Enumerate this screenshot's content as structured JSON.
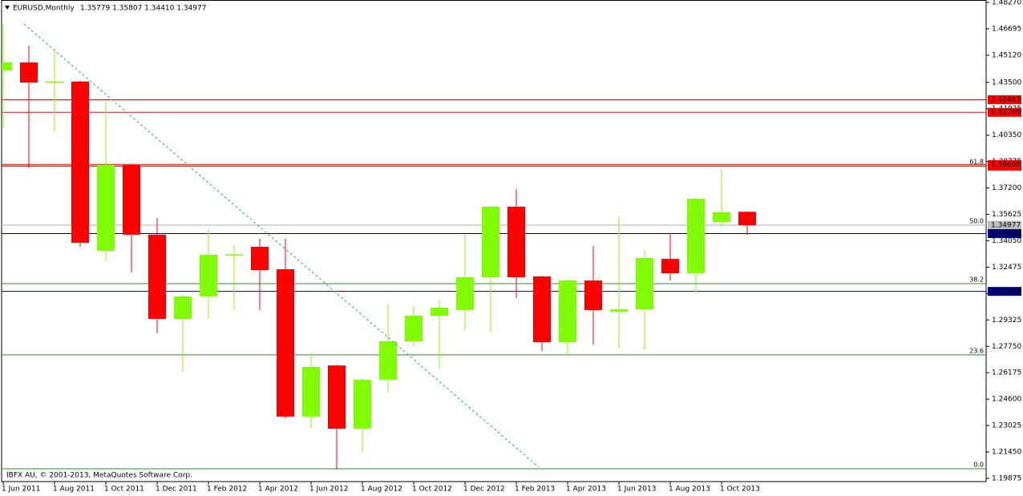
{
  "chart_data": {
    "type": "candlestick",
    "title": "EURUSD,Monthly",
    "header_values": "1.35779 1.35807 1.34410 1.34977",
    "footer": "IBFX AU, © 2001-2013, MetaQuotes Software Corp.",
    "categories": [
      "1 Jun 2011",
      null,
      "1 Aug 2011",
      null,
      "1 Oct 2011",
      null,
      "1 Dec 2011",
      null,
      "1 Feb 2012",
      null,
      "1 Apr 2012",
      null,
      "1 Jun 2012",
      null,
      "1 Aug 2012",
      null,
      "1 Oct 2012",
      null,
      "1 Dec 2012",
      null,
      "1 Feb 2013",
      null,
      "1 Apr 2013",
      null,
      "1 Jun 2013",
      null,
      "1 Aug 2013",
      null,
      "1 Oct 2013",
      null
    ],
    "open": [
      1.4421,
      1.4469,
      1.435,
      1.4355,
      1.3345,
      1.3857,
      1.3441,
      1.2939,
      1.3073,
      1.3318,
      1.3369,
      1.3235,
      1.2356,
      1.2661,
      1.2284,
      1.2576,
      1.2805,
      1.2958,
      1.2992,
      1.3187,
      1.3608,
      1.3192,
      1.28,
      1.3168,
      1.2982,
      1.2996,
      1.3297,
      1.3211,
      1.3517,
      1.35779
    ],
    "high": [
      1.4698,
      1.4569,
      1.4545,
      1.4359,
      1.4244,
      1.386,
      1.3541,
      1.3082,
      1.3479,
      1.3383,
      1.3417,
      1.3417,
      1.2738,
      1.2665,
      1.2585,
      1.3025,
      1.3015,
      1.3054,
      1.3446,
      1.3612,
      1.3713,
      1.3195,
      1.3175,
      1.3374,
      1.3551,
      1.335,
      1.3446,
      1.366,
      1.3828,
      1.35807
    ],
    "low": [
      1.4077,
      1.3838,
      1.4053,
      1.3369,
      1.3283,
      1.3216,
      1.2853,
      1.2623,
      1.2939,
      1.2991,
      1.2991,
      1.2346,
      1.2284,
      1.204,
      1.2141,
      1.2499,
      1.2776,
      1.2642,
      1.2872,
      1.2858,
      1.3063,
      1.2748,
      1.2729,
      1.2786,
      1.2762,
      1.2757,
      1.3168,
      1.3097,
      1.3489,
      1.3441
    ],
    "close": [
      1.4469,
      1.4349,
      1.4355,
      1.3393,
      1.3857,
      1.3441,
      1.2939,
      1.3073,
      1.3321,
      1.3324,
      1.323,
      1.2356,
      1.2652,
      1.2284,
      1.2576,
      1.2805,
      1.2958,
      1.3006,
      1.3187,
      1.3608,
      1.3187,
      1.28,
      1.3168,
      1.2991,
      1.2996,
      1.3302,
      1.3211,
      1.3656,
      1.3575,
      1.34977
    ],
    "up_color": "#80ff00",
    "down_color": "#ff0000",
    "ylim": [
      1.19684,
      1.48413
    ],
    "yticks": [
      {
        "value": 1.4827,
        "label": "1.48270"
      },
      {
        "value": 1.46695,
        "label": "1.46695"
      },
      {
        "value": 1.4512,
        "label": "1.45120"
      },
      {
        "value": 1.435,
        "label": "1.43500"
      },
      {
        "value": 1.41925,
        "label": "1.41925"
      },
      {
        "value": 1.4035,
        "label": "1.40350"
      },
      {
        "value": 1.38775,
        "label": "1.38775"
      },
      {
        "value": 1.372,
        "label": "1.37200"
      },
      {
        "value": 1.35625,
        "label": "1.35625"
      },
      {
        "value": 1.3405,
        "label": "1.34050"
      },
      {
        "value": 1.32475,
        "label": "1.32475"
      },
      {
        "value": 1.309,
        "label": "1.30900"
      },
      {
        "value": 1.29325,
        "label": "1.29325"
      },
      {
        "value": 1.2775,
        "label": "1.27750"
      },
      {
        "value": 1.26175,
        "label": "1.26175"
      },
      {
        "value": 1.246,
        "label": "1.24600"
      },
      {
        "value": 1.23025,
        "label": "1.23025"
      },
      {
        "value": 1.2145,
        "label": "1.21450"
      },
      {
        "value": 1.19875,
        "label": "1.19875"
      }
    ],
    "fib_color": "#2e8b2e",
    "fib_levels": [
      {
        "value": 1.3852,
        "label": "61.8"
      },
      {
        "value": 1.3498,
        "label": "50.0"
      },
      {
        "value": 1.3149,
        "label": "38.2"
      },
      {
        "value": 1.2724,
        "label": "23.6"
      },
      {
        "value": 1.2045,
        "label": "0.0"
      }
    ],
    "price_lines": [
      {
        "value": 1.42463,
        "label": "1.42463",
        "color": "#ff0000"
      },
      {
        "value": 1.41709,
        "label": "1.41709",
        "color": "#ff0000"
      },
      {
        "value": 1.385,
        "label": "1.38500",
        "color": "#ff0000"
      },
      {
        "value": 1.386,
        "label": "1.38600",
        "color": "#ff0000"
      },
      {
        "value": 1.34977,
        "label": "1.34977",
        "color": "#c0c0c0"
      },
      {
        "value": 1.3448,
        "label": "1.34480",
        "color": "#000080"
      },
      {
        "value": 1.3103,
        "label": "1.31030",
        "color": "#000080"
      }
    ]
  }
}
